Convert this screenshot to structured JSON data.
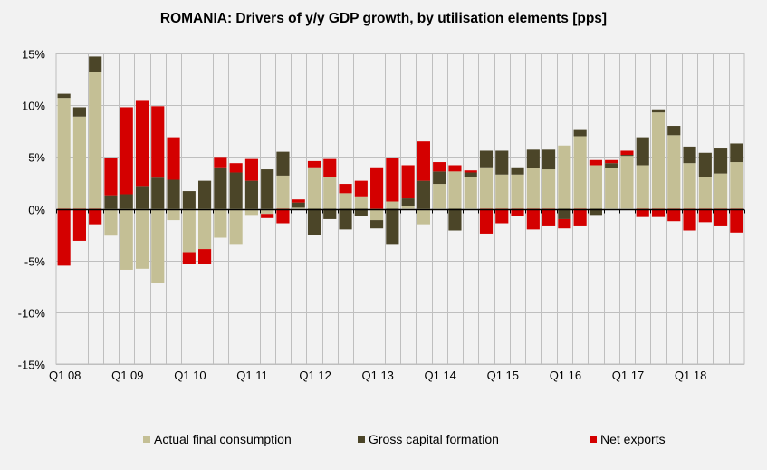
{
  "chart_data": {
    "type": "bar",
    "stacked": true,
    "title": "ROMANIA: Drivers of y/y GDP growth, by utilisation elements [pps]",
    "xlabel": "",
    "ylabel": "",
    "ylim": [
      -15,
      15
    ],
    "yticks": [
      15,
      10,
      5,
      0,
      -5,
      -10,
      -15
    ],
    "ytick_labels": [
      "15%",
      "10%",
      "5%",
      "0%",
      "-5%",
      "-10%",
      "-15%"
    ],
    "grid": true,
    "legend_position": "bottom",
    "categories": [
      "Q1 08",
      "Q2 08",
      "Q3 08",
      "Q4 08",
      "Q1 09",
      "Q2 09",
      "Q3 09",
      "Q4 09",
      "Q1 10",
      "Q2 10",
      "Q3 10",
      "Q4 10",
      "Q1 11",
      "Q2 11",
      "Q3 11",
      "Q4 11",
      "Q1 12",
      "Q2 12",
      "Q3 12",
      "Q4 12",
      "Q1 13",
      "Q2 13",
      "Q3 13",
      "Q4 13",
      "Q1 14",
      "Q2 14",
      "Q3 14",
      "Q4 14",
      "Q1 15",
      "Q2 15",
      "Q3 15",
      "Q4 15",
      "Q1 16",
      "Q2 16",
      "Q3 16",
      "Q4 16",
      "Q1 17",
      "Q2 17",
      "Q3 17",
      "Q4 17",
      "Q1 18",
      "Q2 18",
      "Q3 18",
      "Q4 18"
    ],
    "xtick_labels": [
      {
        "index": 0,
        "label": "Q1 08"
      },
      {
        "index": 4,
        "label": "Q1 09"
      },
      {
        "index": 8,
        "label": "Q1 10"
      },
      {
        "index": 12,
        "label": "Q1 11"
      },
      {
        "index": 16,
        "label": "Q1 12"
      },
      {
        "index": 20,
        "label": "Q1 13"
      },
      {
        "index": 24,
        "label": "Q1 14"
      },
      {
        "index": 28,
        "label": "Q1 15"
      },
      {
        "index": 32,
        "label": "Q1 16"
      },
      {
        "index": 36,
        "label": "Q1 17"
      },
      {
        "index": 40,
        "label": "Q1 18"
      }
    ],
    "series": [
      {
        "name": "Actual final consumption",
        "color": "#c4bf95",
        "values": [
          10.7,
          8.9,
          13.2,
          -2.6,
          -5.9,
          -5.8,
          -7.2,
          -1.1,
          -4.2,
          -3.9,
          -2.8,
          -3.4,
          -0.6,
          -0.5,
          3.2,
          0.1,
          4.0,
          3.1,
          1.5,
          1.2,
          -1.1,
          0.7,
          0.3,
          -1.5,
          2.4,
          3.6,
          3.1,
          4.0,
          3.3,
          3.3,
          3.9,
          3.8,
          6.1,
          7.0,
          4.2,
          3.9,
          5.1,
          4.2,
          9.3,
          7.1,
          4.4,
          3.1,
          3.4,
          4.5
        ]
      },
      {
        "name": "Gross capital formation",
        "color": "#4b4528",
        "values": [
          0.4,
          0.9,
          1.5,
          1.3,
          1.4,
          2.2,
          3.0,
          2.8,
          1.7,
          2.7,
          4.0,
          3.5,
          2.7,
          3.8,
          2.3,
          0.5,
          -2.5,
          -1.0,
          -2.0,
          -0.7,
          -0.8,
          -3.4,
          0.7,
          2.7,
          1.2,
          -2.1,
          0.4,
          1.6,
          2.3,
          0.7,
          1.8,
          1.9,
          -1.0,
          0.6,
          -0.6,
          0.5,
          0.1,
          2.7,
          0.3,
          0.9,
          1.6,
          2.3,
          2.5,
          1.8
        ]
      },
      {
        "name": "Net exports",
        "color": "#d40000",
        "values": [
          -5.5,
          -3.1,
          -1.5,
          3.6,
          8.4,
          8.3,
          6.9,
          4.1,
          -1.1,
          -1.4,
          1.0,
          0.9,
          2.1,
          -0.4,
          -1.4,
          0.3,
          0.6,
          1.7,
          0.9,
          1.5,
          4.0,
          4.2,
          3.2,
          3.8,
          0.9,
          0.6,
          0.2,
          -2.4,
          -1.4,
          -0.7,
          -2.0,
          -1.7,
          -0.9,
          -1.7,
          0.5,
          0.3,
          0.4,
          -0.8,
          -0.8,
          -1.2,
          -2.1,
          -1.3,
          -1.7,
          -2.3
        ]
      }
    ]
  },
  "legend": {
    "items": [
      {
        "label": "Actual final consumption",
        "color": "#c4bf95"
      },
      {
        "label": "Gross capital formation",
        "color": "#4b4528"
      },
      {
        "label": "Net exports",
        "color": "#d40000"
      }
    ]
  }
}
